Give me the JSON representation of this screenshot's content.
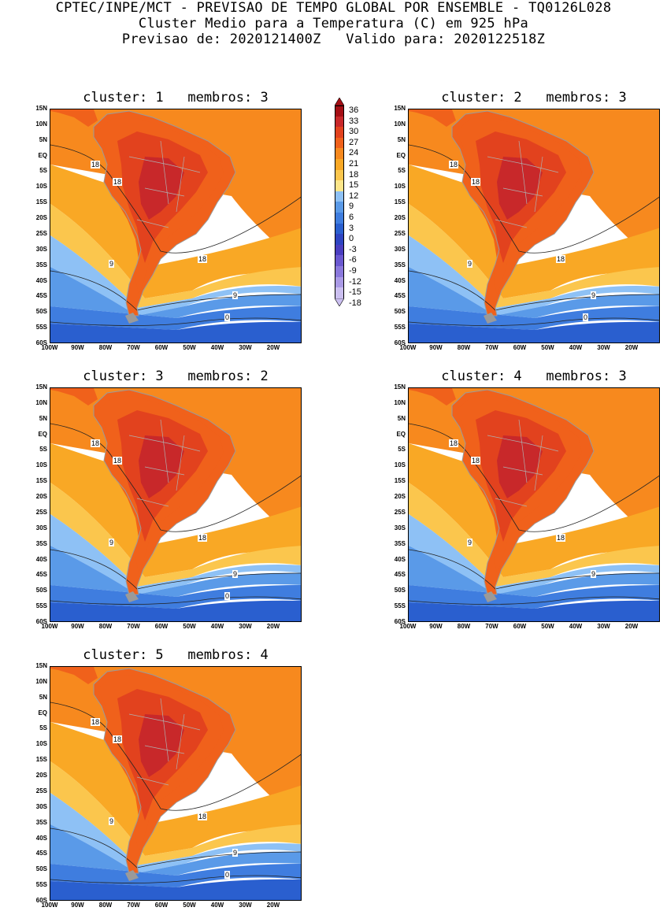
{
  "header": {
    "line1": "CPTEC/INPE/MCT - PREVISAO DE TEMPO GLOBAL POR ENSEMBLE - TQ0126L028",
    "line2": "Cluster Medio para a Temperatura (C) em 925 hPa",
    "line3": "Previsao de: 2020121400Z   Valido para: 2020122518Z"
  },
  "axes": {
    "lat_labels": [
      "15N",
      "10N",
      "5N",
      "EQ",
      "5S",
      "10S",
      "15S",
      "20S",
      "25S",
      "30S",
      "35S",
      "40S",
      "45S",
      "50S",
      "55S",
      "60S"
    ],
    "lon_labels": [
      "100W",
      "90W",
      "80W",
      "70W",
      "60W",
      "50W",
      "40W",
      "30W",
      "20W"
    ]
  },
  "colorbar": {
    "labels": [
      "36",
      "33",
      "30",
      "27",
      "24",
      "21",
      "18",
      "15",
      "12",
      "9",
      "6",
      "3",
      "0",
      "-3",
      "-6",
      "-9",
      "-12",
      "-15",
      "-18"
    ],
    "colors": [
      "#a50f15",
      "#c8282a",
      "#e2421e",
      "#f0611b",
      "#f7891e",
      "#f9a825",
      "#fbc64d",
      "#fde68a",
      "#8ec1f5",
      "#5a9ae8",
      "#3f7ddf",
      "#2a5fcf",
      "#2e44c2",
      "#4a3ec0",
      "#6a58d0",
      "#8a78dc",
      "#aa9ae6",
      "#cbbff0"
    ]
  },
  "panels": [
    {
      "title": "cluster: 1   membros: 3",
      "contours": [
        "18",
        "18",
        "9",
        "18",
        "9",
        "0"
      ]
    },
    {
      "title": "cluster: 2   membros: 3",
      "contours": [
        "18",
        "18",
        "9",
        "18",
        "9",
        "0"
      ]
    },
    {
      "title": "cluster: 3   membros: 2",
      "contours": [
        "18",
        "18",
        "9",
        "18",
        "9",
        "0"
      ]
    },
    {
      "title": "cluster: 4   membros: 3",
      "contours": [
        "18",
        "18",
        "9",
        "18",
        "9"
      ]
    },
    {
      "title": "cluster: 5   membros: 4",
      "contours": [
        "18",
        "18",
        "9",
        "18",
        "9",
        "0"
      ]
    }
  ]
}
